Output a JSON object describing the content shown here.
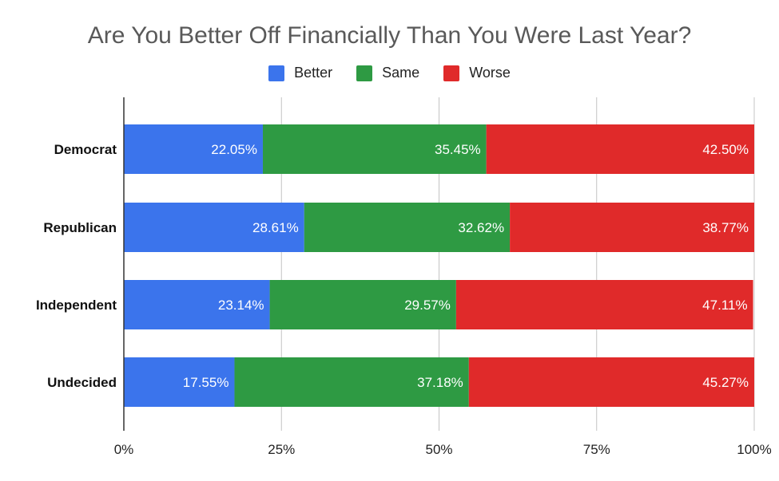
{
  "chart_data": {
    "type": "bar",
    "orientation": "horizontal",
    "stacked": true,
    "title": "Are You Better Off Financially Than You Were Last Year?",
    "categories": [
      "Democrat",
      "Republican",
      "Independent",
      "Undecided"
    ],
    "series": [
      {
        "name": "Better",
        "color": "#3b74ec",
        "values": [
          22.05,
          28.61,
          23.14,
          17.55
        ],
        "labels": [
          "22.05%",
          "28.61%",
          "23.14%",
          "17.55%"
        ]
      },
      {
        "name": "Same",
        "color": "#2e9a43",
        "values": [
          35.45,
          32.62,
          29.57,
          37.18
        ],
        "labels": [
          "35.45%",
          "32.62%",
          "29.57%",
          "37.18%"
        ]
      },
      {
        "name": "Worse",
        "color": "#e02a2a",
        "values": [
          42.5,
          38.77,
          47.11,
          45.27
        ],
        "labels": [
          "42.50%",
          "38.77%",
          "47.11%",
          "45.27%"
        ]
      }
    ],
    "x_ticks": [
      "0%",
      "25%",
      "50%",
      "75%",
      "100%"
    ],
    "xlim": [
      0,
      100
    ],
    "grid": true,
    "legend_position": "top"
  }
}
